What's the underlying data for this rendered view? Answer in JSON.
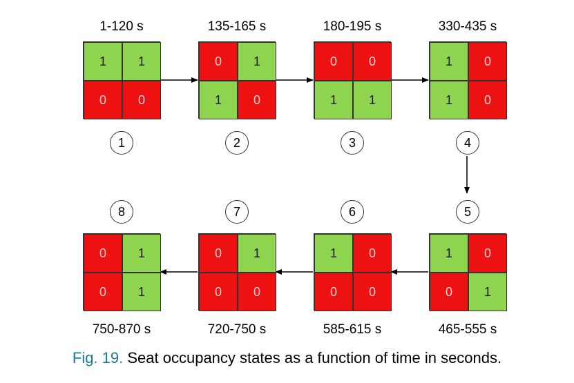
{
  "states": [
    {
      "number": "1",
      "time": "1-120 s",
      "cells": [
        "1",
        "1",
        "0",
        "0"
      ]
    },
    {
      "number": "2",
      "time": "135-165 s",
      "cells": [
        "0",
        "1",
        "1",
        "0"
      ]
    },
    {
      "number": "3",
      "time": "180-195 s",
      "cells": [
        "0",
        "0",
        "1",
        "1"
      ]
    },
    {
      "number": "4",
      "time": "330-435 s",
      "cells": [
        "1",
        "0",
        "1",
        "0"
      ]
    },
    {
      "number": "5",
      "time": "465-555 s",
      "cells": [
        "1",
        "0",
        "0",
        "1"
      ]
    },
    {
      "number": "6",
      "time": "585-615 s",
      "cells": [
        "1",
        "0",
        "0",
        "0"
      ]
    },
    {
      "number": "7",
      "time": "720-750 s",
      "cells": [
        "0",
        "1",
        "0",
        "0"
      ]
    },
    {
      "number": "8",
      "time": "750-870 s",
      "cells": [
        "0",
        "1",
        "0",
        "1"
      ]
    }
  ],
  "colors": {
    "occupied": "#8fd44f",
    "empty": "#ee1111",
    "caption_label": "#1a7a96"
  },
  "caption": {
    "label": "Fig. 19.",
    "text": "Seat occupancy states as a function of time in seconds."
  }
}
